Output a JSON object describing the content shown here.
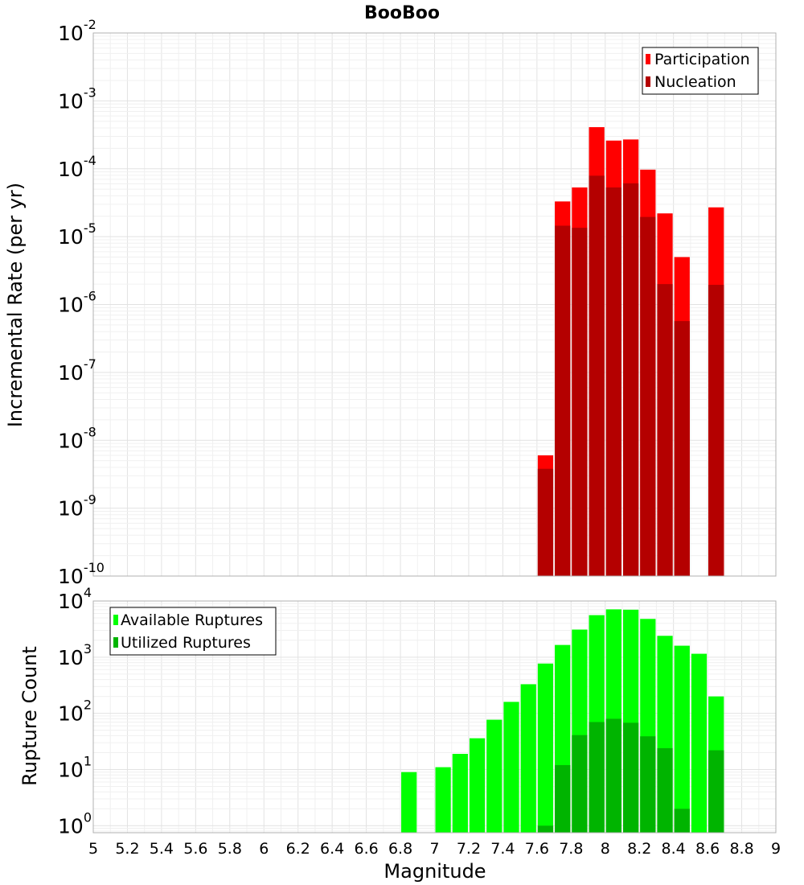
{
  "title": "BooBoo",
  "chart_data": [
    {
      "type": "bar",
      "ylabel": "Incremental Rate (per yr)",
      "xlabel": "Magnitude",
      "xlim": [
        5,
        9
      ],
      "ylim": [
        1e-10,
        0.01
      ],
      "yscale": "log",
      "grid": true,
      "legend_position": "top-right",
      "bar_width": 0.1,
      "series": [
        {
          "name": "Participation",
          "color": "#ff0000",
          "points": [
            {
              "x": 7.65,
              "y": 6e-09
            },
            {
              "x": 7.75,
              "y": 3.3e-05
            },
            {
              "x": 7.85,
              "y": 5.3e-05
            },
            {
              "x": 7.95,
              "y": 0.00041
            },
            {
              "x": 8.05,
              "y": 0.00026
            },
            {
              "x": 8.15,
              "y": 0.00027
            },
            {
              "x": 8.25,
              "y": 9.7e-05
            },
            {
              "x": 8.35,
              "y": 2.2e-05
            },
            {
              "x": 8.45,
              "y": 5e-06
            },
            {
              "x": 8.65,
              "y": 2.7e-05
            }
          ]
        },
        {
          "name": "Nucleation",
          "color": "#b40000",
          "points": [
            {
              "x": 7.65,
              "y": 3.8e-09
            },
            {
              "x": 7.75,
              "y": 1.45e-05
            },
            {
              "x": 7.85,
              "y": 1.35e-05
            },
            {
              "x": 7.95,
              "y": 7.9e-05
            },
            {
              "x": 8.05,
              "y": 5.3e-05
            },
            {
              "x": 8.15,
              "y": 6.1e-05
            },
            {
              "x": 8.25,
              "y": 1.95e-05
            },
            {
              "x": 8.35,
              "y": 2e-06
            },
            {
              "x": 8.45,
              "y": 5.7e-07
            },
            {
              "x": 8.65,
              "y": 1.95e-06
            }
          ]
        }
      ]
    },
    {
      "type": "bar",
      "ylabel": "Rupture Count",
      "xlabel": "Magnitude",
      "xlim": [
        5,
        9
      ],
      "ylim": [
        0.75,
        10000
      ],
      "yscale": "log",
      "grid": true,
      "legend_position": "top-left",
      "bar_width": 0.1,
      "xticks": [
        "5",
        "5.2",
        "5.4",
        "5.6",
        "5.8",
        "6",
        "6.2",
        "6.4",
        "6.6",
        "6.8",
        "7",
        "7.2",
        "7.4",
        "7.6",
        "7.8",
        "8",
        "8.2",
        "8.4",
        "8.6",
        "8.8",
        "9"
      ],
      "series": [
        {
          "name": "Available Ruptures",
          "color": "#00ff00",
          "points": [
            {
              "x": 6.85,
              "y": 9
            },
            {
              "x": 7.05,
              "y": 11
            },
            {
              "x": 7.15,
              "y": 19
            },
            {
              "x": 7.25,
              "y": 36
            },
            {
              "x": 7.35,
              "y": 77
            },
            {
              "x": 7.45,
              "y": 160
            },
            {
              "x": 7.55,
              "y": 330
            },
            {
              "x": 7.65,
              "y": 770
            },
            {
              "x": 7.75,
              "y": 1650
            },
            {
              "x": 7.85,
              "y": 3100
            },
            {
              "x": 7.95,
              "y": 5600
            },
            {
              "x": 8.05,
              "y": 7100
            },
            {
              "x": 8.15,
              "y": 7000
            },
            {
              "x": 8.25,
              "y": 4800
            },
            {
              "x": 8.35,
              "y": 2400
            },
            {
              "x": 8.45,
              "y": 1600
            },
            {
              "x": 8.55,
              "y": 1150
            },
            {
              "x": 8.65,
              "y": 200
            }
          ]
        },
        {
          "name": "Utilized Ruptures",
          "color": "#00b400",
          "points": [
            {
              "x": 7.65,
              "y": 1
            },
            {
              "x": 7.75,
              "y": 12
            },
            {
              "x": 7.85,
              "y": 41
            },
            {
              "x": 7.95,
              "y": 70
            },
            {
              "x": 8.05,
              "y": 80
            },
            {
              "x": 8.15,
              "y": 68
            },
            {
              "x": 8.25,
              "y": 39
            },
            {
              "x": 8.35,
              "y": 24
            },
            {
              "x": 8.45,
              "y": 2
            },
            {
              "x": 8.65,
              "y": 22
            }
          ]
        }
      ]
    }
  ],
  "axes": {
    "top_yticks": [
      {
        "base": "10",
        "exp": "-2"
      },
      {
        "base": "10",
        "exp": "-3"
      },
      {
        "base": "10",
        "exp": "-4"
      },
      {
        "base": "10",
        "exp": "-5"
      },
      {
        "base": "10",
        "exp": "-6"
      },
      {
        "base": "10",
        "exp": "-7"
      },
      {
        "base": "10",
        "exp": "-8"
      },
      {
        "base": "10",
        "exp": "-9"
      },
      {
        "base": "10",
        "exp": "-10"
      }
    ],
    "bottom_yticks": [
      {
        "base": "10",
        "exp": "0"
      },
      {
        "base": "10",
        "exp": "1"
      },
      {
        "base": "10",
        "exp": "2"
      },
      {
        "base": "10",
        "exp": "3"
      },
      {
        "base": "10",
        "exp": "4"
      }
    ]
  }
}
